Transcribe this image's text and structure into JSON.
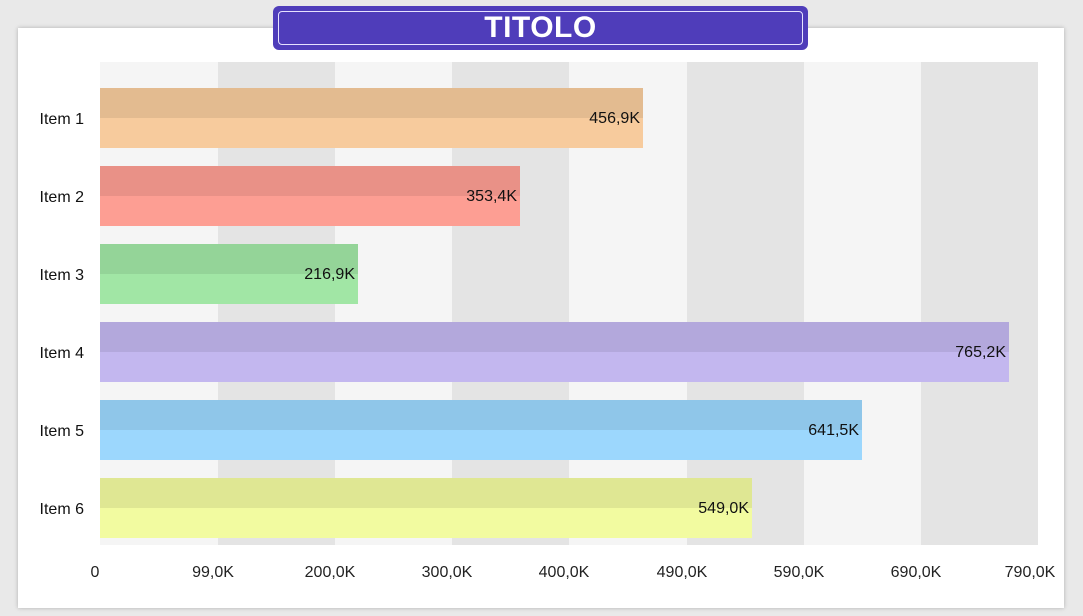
{
  "title": "TITOLO",
  "chart_data": {
    "type": "bar",
    "orientation": "horizontal",
    "title": "TITOLO",
    "categories": [
      "Item 1",
      "Item 2",
      "Item 3",
      "Item 4",
      "Item 5",
      "Item 6"
    ],
    "values": [
      456.9,
      353.4,
      216.9,
      765.2,
      641.5,
      549.0
    ],
    "value_labels": [
      "456,9K",
      "353,4K",
      "216,9K",
      "765,2K",
      "641,5K",
      "549,0K"
    ],
    "colors": [
      "#f7cb9d",
      "#fd9e93",
      "#a1e6a5",
      "#c3b7ef",
      "#9cd7fd",
      "#f2fba0"
    ],
    "xticks": [
      0,
      99,
      200,
      300,
      400,
      490,
      590,
      690,
      790
    ],
    "xtick_labels": [
      "0",
      "99,0K",
      "200,0K",
      "300,0K",
      "400,0K",
      "490,0K",
      "590,0K",
      "690,0K",
      "790,0K"
    ],
    "xlim": [
      0,
      790
    ],
    "xlabel": "",
    "ylabel": "",
    "grid": "alternating vertical bands",
    "legend": "none"
  }
}
